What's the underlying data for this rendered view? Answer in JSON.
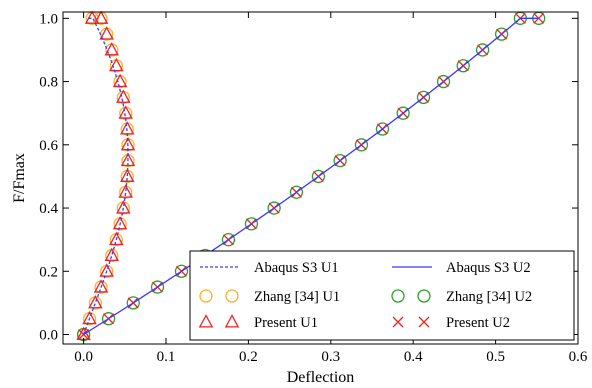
{
  "chart_data": {
    "type": "line",
    "xlabel": "Deflection",
    "ylabel": "F/Fmax",
    "xlim": [
      -0.025,
      0.6
    ],
    "ylim": [
      -0.03,
      1.02
    ],
    "xticks": [
      0.0,
      0.1,
      0.2,
      0.3,
      0.4,
      0.5,
      0.6
    ],
    "yticks": [
      0.0,
      0.2,
      0.4,
      0.6,
      0.8,
      1.0
    ],
    "xtick_labels": [
      "0.0",
      "0.1",
      "0.2",
      "0.3",
      "0.4",
      "0.5",
      "0.6"
    ],
    "ytick_labels": [
      "0.0",
      "0.2",
      "0.4",
      "0.6",
      "0.8",
      "1.0"
    ],
    "grid": false,
    "legend_placement": "lower-right",
    "legend_columns": 2,
    "series": [
      {
        "name": "Abaqus S3 U1",
        "style": "dashed-line",
        "color": "#3a3aff",
        "x": [
          0.0,
          0.0048,
          0.0095,
          0.0143,
          0.019,
          0.0236,
          0.028,
          0.0322,
          0.0361,
          0.0397,
          0.0429,
          0.0458,
          0.0482,
          0.0503,
          0.0518,
          0.053,
          0.0537,
          0.0539,
          0.0537,
          0.053,
          0.0518,
          0.05,
          0.0477,
          0.0449,
          0.0415,
          0.0377,
          0.0334,
          0.0286,
          0.0233,
          0.0175,
          0.0112,
          0.0045
        ],
        "y": [
          0.0,
          0.0333,
          0.0667,
          0.1,
          0.1333,
          0.1667,
          0.2,
          0.2333,
          0.2667,
          0.3,
          0.3333,
          0.3667,
          0.4,
          0.4333,
          0.4667,
          0.5,
          0.5333,
          0.5667,
          0.6,
          0.6333,
          0.6667,
          0.7,
          0.7333,
          0.7667,
          0.8,
          0.8333,
          0.8667,
          0.9,
          0.9333,
          0.9667,
          1.0,
          1.0
        ]
      },
      {
        "name": "Abaqus S3 U2",
        "style": "solid-line",
        "color": "#3a3aff",
        "x": [
          0.0,
          0.0303,
          0.0602,
          0.0897,
          0.1188,
          0.1475,
          0.1758,
          0.2037,
          0.2312,
          0.2583,
          0.285,
          0.3113,
          0.3372,
          0.3627,
          0.3878,
          0.4125,
          0.4368,
          0.4607,
          0.4842,
          0.5073,
          0.53,
          0.5523
        ],
        "y": [
          0.0,
          0.05,
          0.1,
          0.15,
          0.2,
          0.25,
          0.3,
          0.35,
          0.4,
          0.45,
          0.5,
          0.55,
          0.6,
          0.65,
          0.7,
          0.75,
          0.8,
          0.85,
          0.9,
          0.95,
          1.0,
          1.0
        ]
      },
      {
        "name": "Zhang [34] U1",
        "style": "circle-marker",
        "color": "#ffb02e",
        "x": [
          0.0,
          0.0072,
          0.0143,
          0.0212,
          0.028,
          0.0342,
          0.0397,
          0.0443,
          0.0482,
          0.0511,
          0.053,
          0.0539,
          0.0539,
          0.053,
          0.0511,
          0.0482,
          0.0443,
          0.0397,
          0.0342,
          0.028,
          0.0212,
          0.0103
        ],
        "y": [
          0.0,
          0.05,
          0.1,
          0.15,
          0.2,
          0.25,
          0.3,
          0.35,
          0.4,
          0.45,
          0.5,
          0.55,
          0.6,
          0.65,
          0.7,
          0.75,
          0.8,
          0.85,
          0.9,
          0.95,
          1.0,
          1.0
        ]
      },
      {
        "name": "Zhang [34] U2",
        "style": "circle-marker",
        "color": "#2ca02c",
        "x": [
          0.0,
          0.0303,
          0.0602,
          0.0897,
          0.1188,
          0.1475,
          0.1758,
          0.2037,
          0.2312,
          0.2583,
          0.285,
          0.3113,
          0.3372,
          0.3627,
          0.3878,
          0.4125,
          0.4368,
          0.4607,
          0.4842,
          0.5073,
          0.53,
          0.5523
        ],
        "y": [
          0.0,
          0.05,
          0.1,
          0.15,
          0.2,
          0.25,
          0.3,
          0.35,
          0.4,
          0.45,
          0.5,
          0.55,
          0.6,
          0.65,
          0.7,
          0.75,
          0.8,
          0.85,
          0.9,
          0.95,
          1.0,
          1.0
        ]
      },
      {
        "name": "Present U1",
        "style": "triangle-marker",
        "color": "#ee2222",
        "x": [
          0.0,
          0.0072,
          0.0143,
          0.0212,
          0.028,
          0.0342,
          0.0397,
          0.0443,
          0.0482,
          0.0511,
          0.053,
          0.0539,
          0.0539,
          0.053,
          0.0511,
          0.0482,
          0.0443,
          0.0397,
          0.0342,
          0.028,
          0.0212,
          0.0103
        ],
        "y": [
          0.0,
          0.05,
          0.1,
          0.15,
          0.2,
          0.25,
          0.3,
          0.35,
          0.4,
          0.45,
          0.5,
          0.55,
          0.6,
          0.65,
          0.7,
          0.75,
          0.8,
          0.85,
          0.9,
          0.95,
          1.0,
          1.0
        ]
      },
      {
        "name": "Present U2",
        "style": "x-marker",
        "color": "#ee2222",
        "x": [
          0.0,
          0.0303,
          0.0602,
          0.0897,
          0.1188,
          0.1475,
          0.1758,
          0.2037,
          0.2312,
          0.2583,
          0.285,
          0.3113,
          0.3372,
          0.3627,
          0.3878,
          0.4125,
          0.4368,
          0.4607,
          0.4842,
          0.5073,
          0.53,
          0.5523
        ],
        "y": [
          0.0,
          0.05,
          0.1,
          0.15,
          0.2,
          0.25,
          0.3,
          0.35,
          0.4,
          0.45,
          0.5,
          0.55,
          0.6,
          0.65,
          0.7,
          0.75,
          0.8,
          0.85,
          0.9,
          0.95,
          1.0,
          1.0
        ]
      }
    ]
  }
}
